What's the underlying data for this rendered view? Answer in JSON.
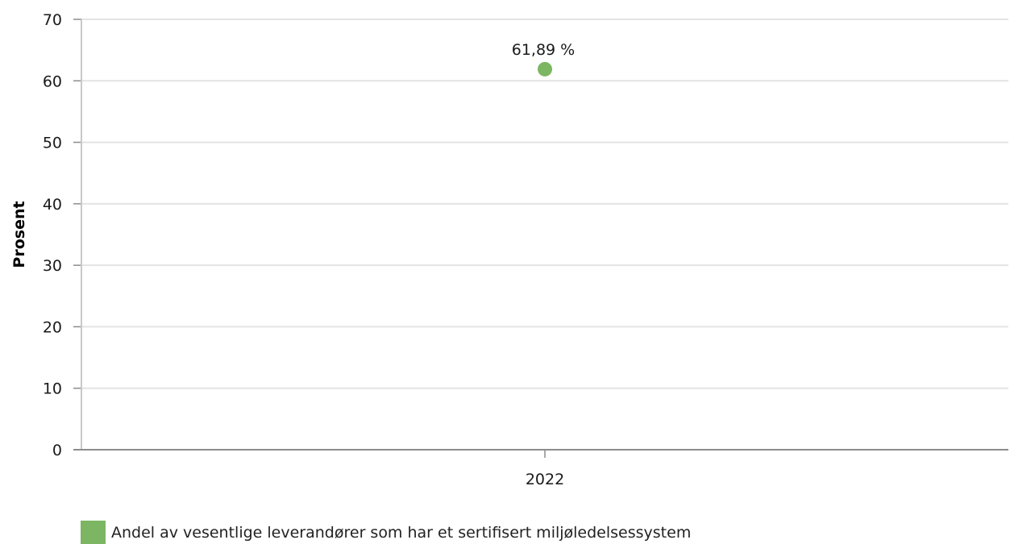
{
  "chart_data": {
    "type": "scatter",
    "ylabel": "Prosent",
    "xlabel": "",
    "categories": [
      "2022"
    ],
    "ylim": [
      0,
      70
    ],
    "yticks": [
      0,
      10,
      20,
      30,
      40,
      50,
      60,
      70
    ],
    "grid": true,
    "legend_position": "bottom-left",
    "series": [
      {
        "name": "Andel av vesentlige leverandører som har et sertifisert miljøledelsessystem",
        "values": [
          61.89
        ],
        "data_labels": [
          "61,89 %"
        ],
        "color": "#7cb663"
      }
    ]
  },
  "colors": {
    "grid": "#e3e3e3",
    "axis": "#8c8c8c",
    "text": "#1a1a1a"
  }
}
